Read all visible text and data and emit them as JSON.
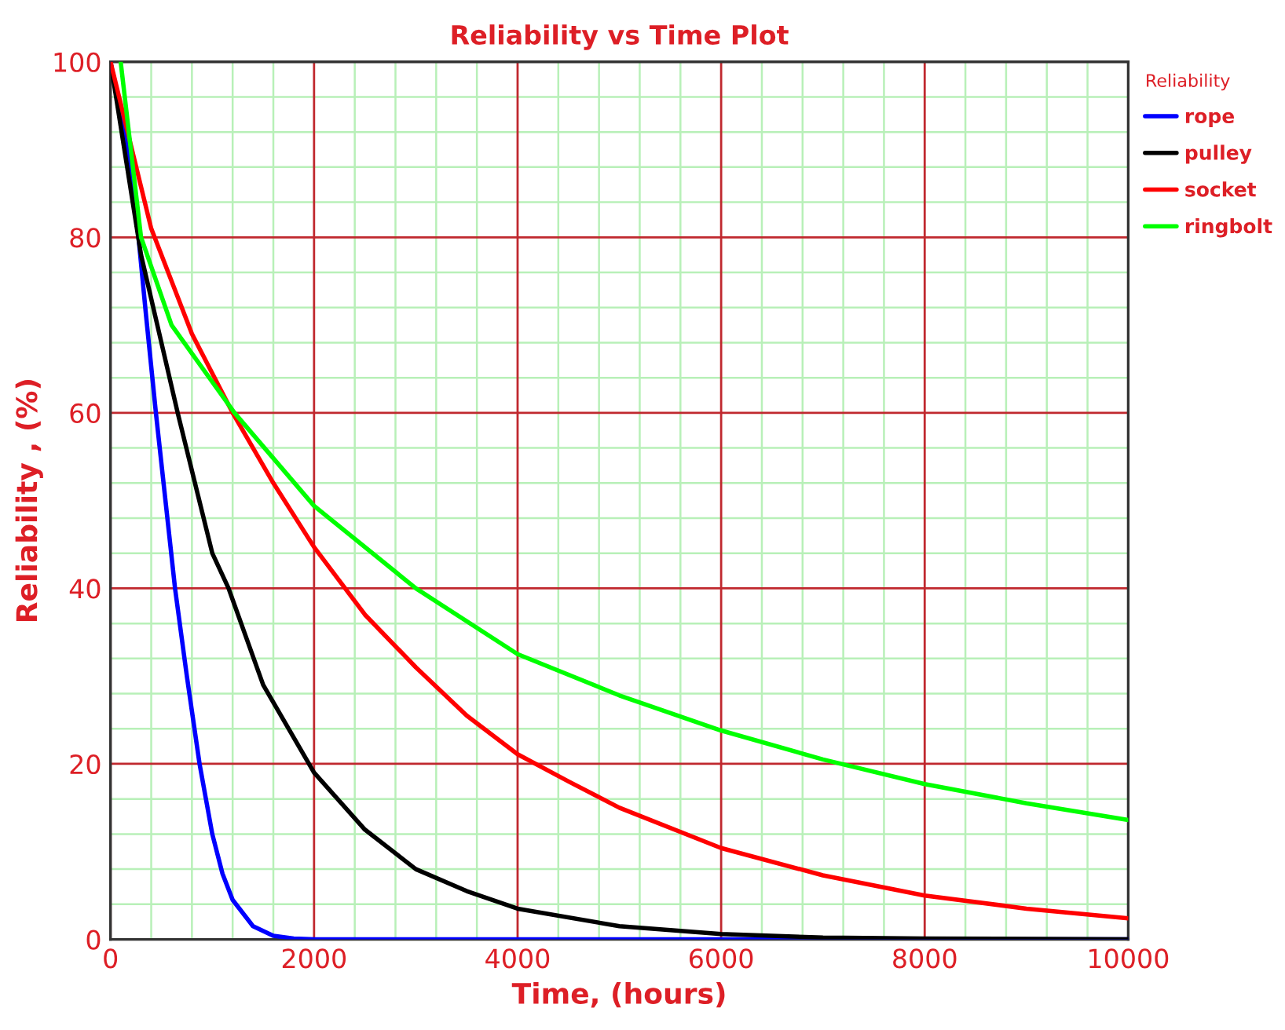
{
  "chart_data": {
    "type": "line",
    "title": "Reliability vs Time Plot",
    "xlabel": "Time, (hours)",
    "ylabel": "Reliability , (%)",
    "legend_title": "Reliability",
    "legend": "top right",
    "grid": true,
    "line_style": "solid",
    "xlim": [
      0,
      10000
    ],
    "ylim": [
      0,
      100
    ],
    "xticks": [
      0,
      {
        "value": 400,
        "label": null
      },
      {
        "value": 800,
        "label": null
      },
      {
        "value": 1200,
        "label": null
      },
      {
        "value": 1600,
        "label": null
      },
      2000,
      {
        "value": 2400,
        "label": null
      },
      {
        "value": 2800,
        "label": null
      },
      {
        "value": 3200,
        "label": null
      },
      {
        "value": 3600,
        "label": null
      },
      4000,
      {
        "value": 4400,
        "label": null
      },
      {
        "value": 4800,
        "label": null
      },
      {
        "value": 5200,
        "label": null
      },
      {
        "value": 5600,
        "label": null
      },
      6000,
      {
        "value": 6400,
        "label": null
      },
      {
        "value": 6800,
        "label": null
      },
      {
        "value": 7200,
        "label": null
      },
      {
        "value": 7600,
        "label": null
      },
      8000,
      {
        "value": 8400,
        "label": null
      },
      {
        "value": 8800,
        "label": null
      },
      {
        "value": 9200,
        "label": null
      },
      {
        "value": 9600,
        "label": null
      },
      10000
    ],
    "yticks": [
      0,
      {
        "value": 4,
        "label": null
      },
      {
        "value": 8,
        "label": null
      },
      {
        "value": 12,
        "label": null
      },
      {
        "value": 16,
        "label": null
      },
      20,
      {
        "value": 24,
        "label": null
      },
      {
        "value": 28,
        "label": null
      },
      {
        "value": 32,
        "label": null
      },
      {
        "value": 36,
        "label": null
      },
      40,
      {
        "value": 44,
        "label": null
      },
      {
        "value": 48,
        "label": null
      },
      {
        "value": 52,
        "label": null
      },
      {
        "value": 56,
        "label": null
      },
      60,
      {
        "value": 64,
        "label": null
      },
      {
        "value": 68,
        "label": null
      },
      {
        "value": 72,
        "label": null
      },
      {
        "value": 76,
        "label": null
      },
      80,
      {
        "value": 84,
        "label": null
      },
      {
        "value": 88,
        "label": null
      },
      {
        "value": 92,
        "label": null
      },
      {
        "value": 96,
        "label": null
      },
      100
    ],
    "series": [
      {
        "name": "rope",
        "color": "#0000ff",
        "x": [
          0,
          200,
          275,
          350,
          446,
          540,
          634,
          750,
          875,
          1000,
          1100,
          1200,
          1400,
          1600,
          1800,
          2000,
          3000,
          5000,
          7000,
          10000
        ],
        "values": [
          100,
          88,
          80,
          71,
          60,
          50,
          40,
          30,
          20,
          12,
          7.5,
          4.5,
          1.5,
          0.4,
          0.1,
          0,
          0,
          0,
          0,
          0
        ]
      },
      {
        "name": "pulley",
        "color": "#000000",
        "x": [
          0,
          300,
          660,
          1000,
          1160,
          1500,
          2000,
          2500,
          3000,
          3500,
          4000,
          5000,
          6000,
          7000,
          8000,
          10000
        ],
        "values": [
          100,
          78,
          60,
          44,
          40,
          29,
          19,
          12.5,
          8,
          5.5,
          3.5,
          1.5,
          0.6,
          0.2,
          0.1,
          0
        ]
      },
      {
        "name": "socket",
        "color": "#ff0000",
        "x": [
          0,
          400,
          800,
          1200,
          1600,
          2000,
          2500,
          3000,
          3500,
          4000,
          4500,
          5000,
          6000,
          7000,
          8000,
          9000,
          10000
        ],
        "values": [
          100,
          81,
          69,
          60,
          52,
          44.7,
          37,
          31,
          25.5,
          21.1,
          18,
          15,
          10.4,
          7.3,
          5.0,
          3.5,
          2.4
        ]
      },
      {
        "name": "ringbolt",
        "color": "#00ff00",
        "x": [
          100,
          300,
          600,
          1218,
          2000,
          3000,
          4000,
          5000,
          6000,
          7000,
          8000,
          9000,
          10000
        ],
        "values": [
          100,
          80,
          70,
          60,
          49.4,
          40,
          32.5,
          27.8,
          23.8,
          20.5,
          17.7,
          15.5,
          13.6
        ]
      }
    ]
  }
}
